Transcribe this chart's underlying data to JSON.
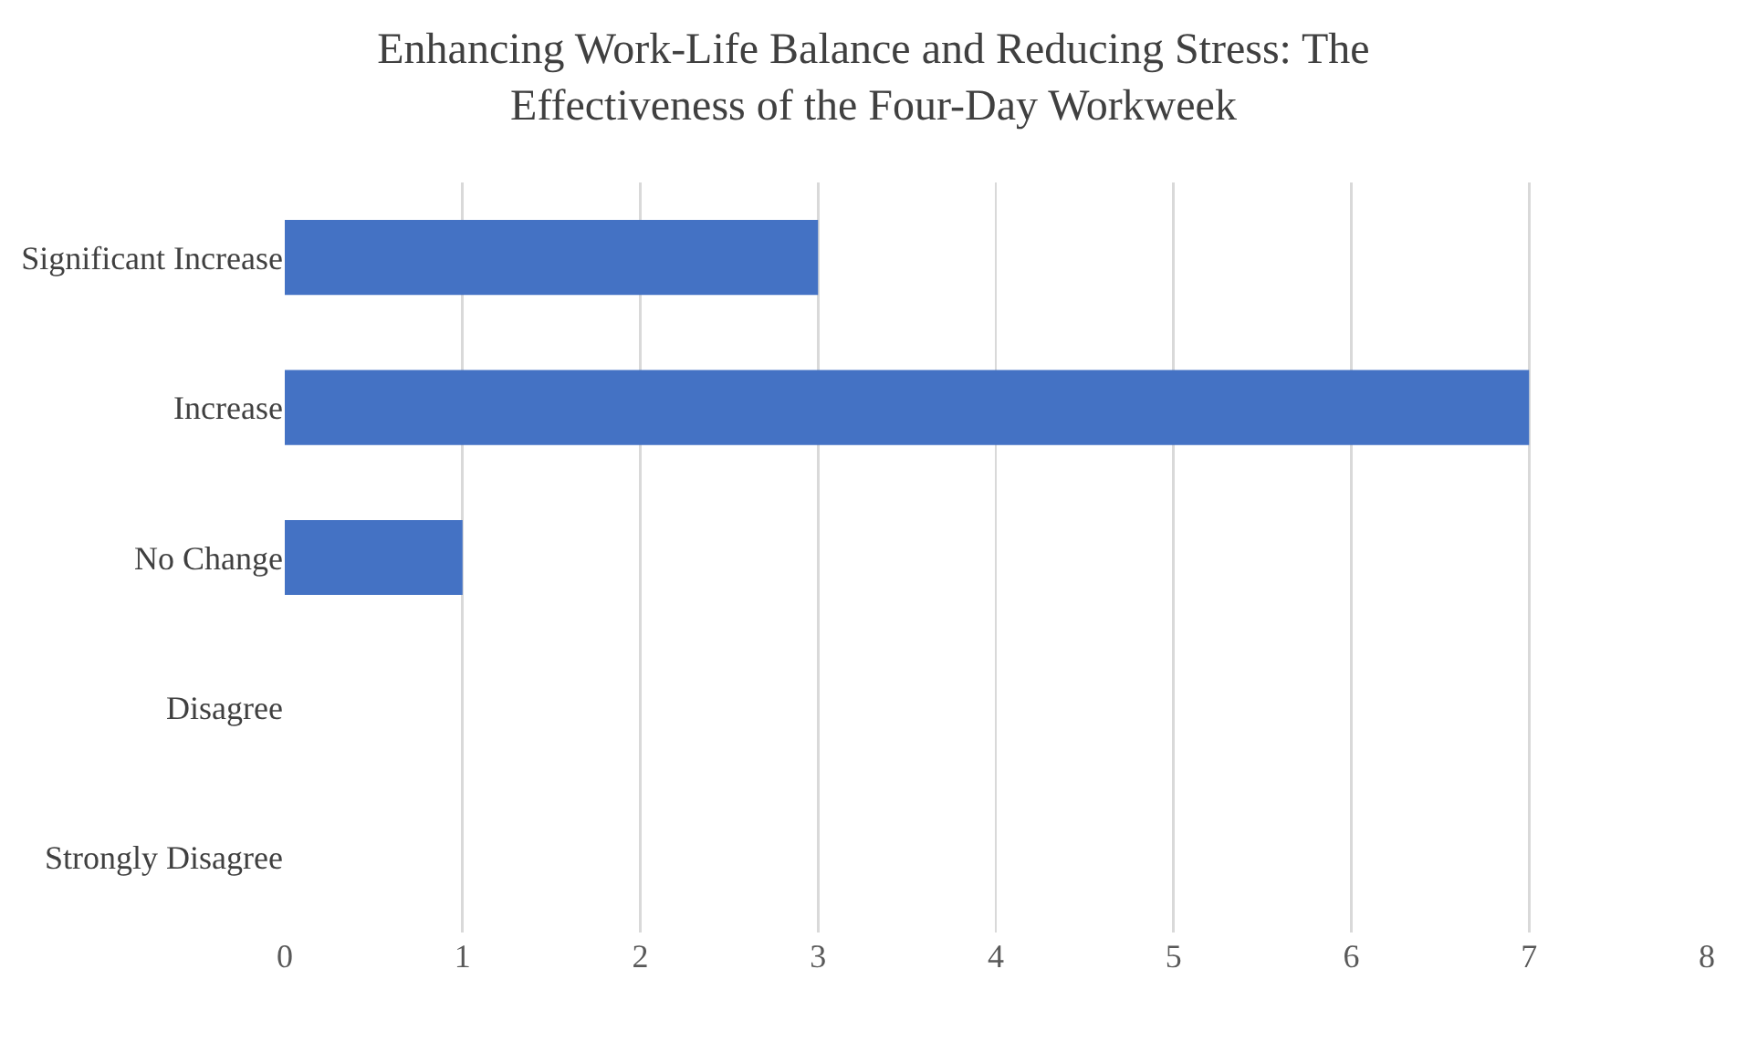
{
  "chart_data": {
    "type": "bar",
    "title": "Enhancing Work-Life Balance and Reducing Stress: The Effectiveness of the Four-Day Workweek",
    "orientation": "horizontal",
    "categories": [
      "Significant Increase",
      "Increase",
      "No Change",
      "Disagree",
      "Strongly Disagree"
    ],
    "values": [
      3,
      7,
      1,
      0,
      0
    ],
    "color": "#4472c4",
    "xlim": [
      0,
      8
    ],
    "xticks": [
      0,
      1,
      2,
      3,
      4,
      5,
      6,
      7,
      8
    ],
    "grid": "x"
  }
}
